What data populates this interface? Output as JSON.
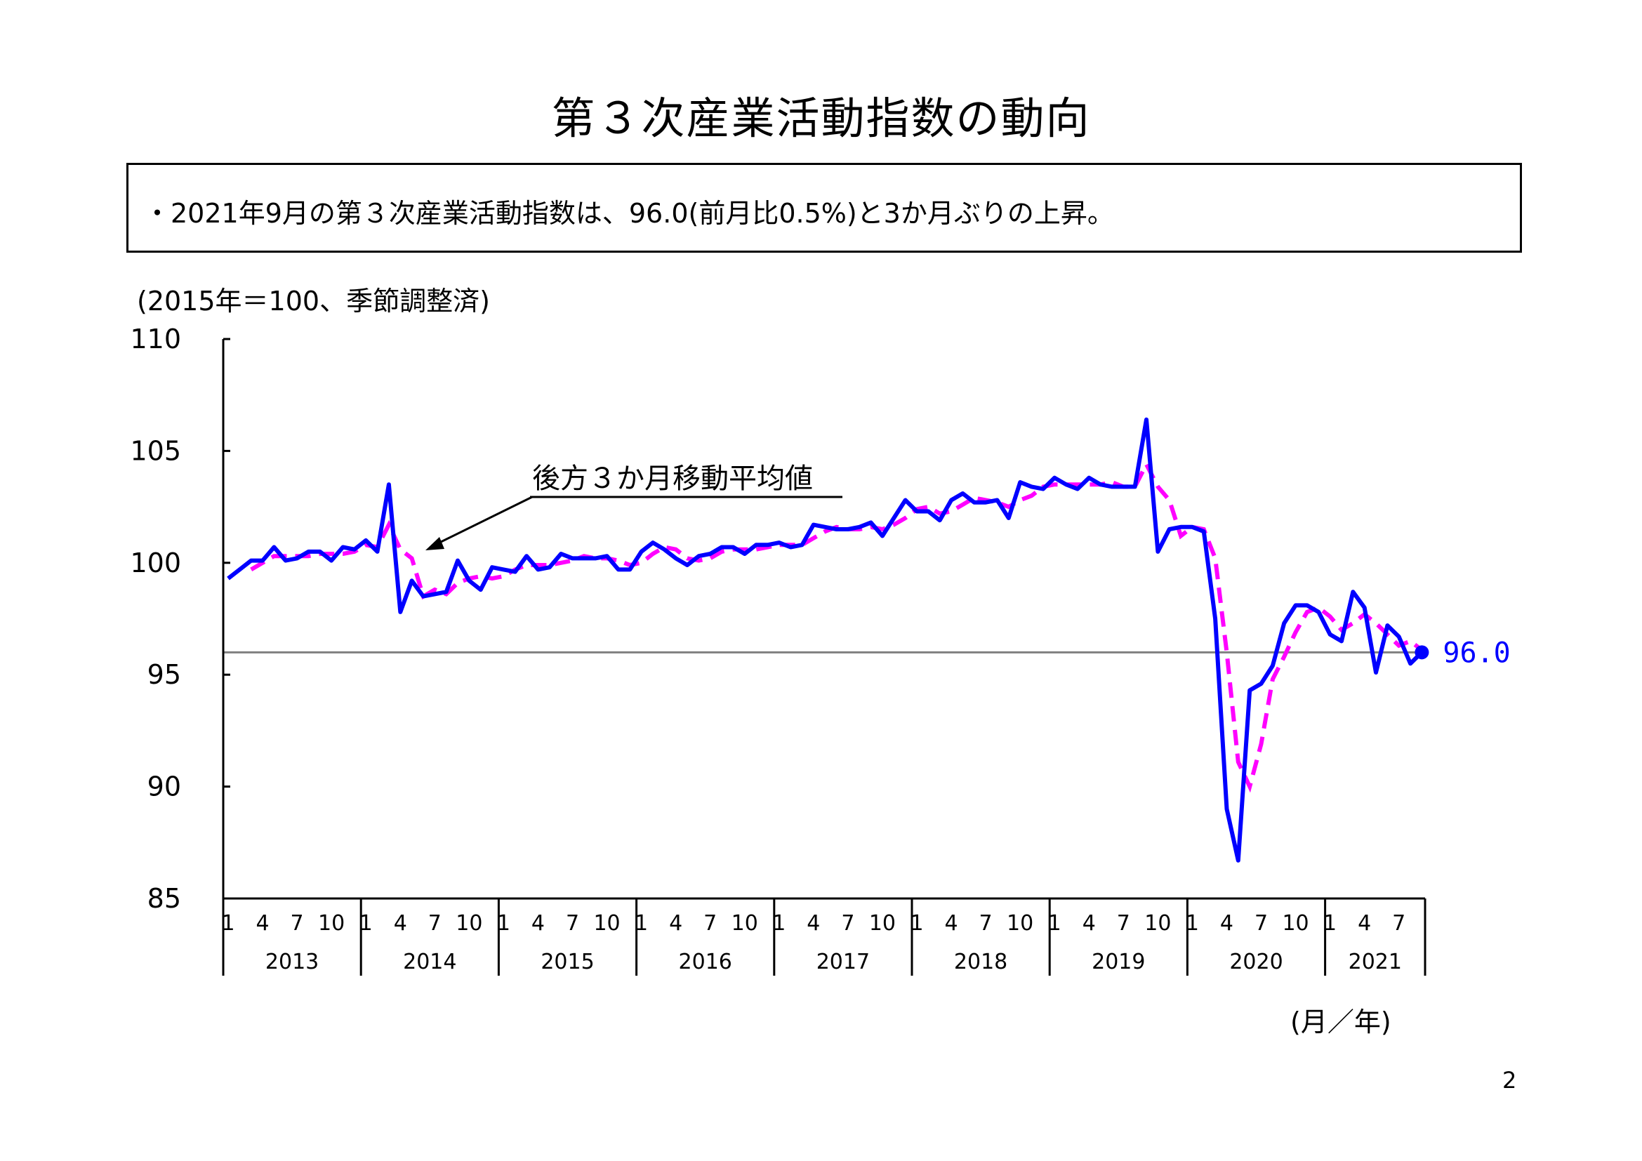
{
  "title": "第３次産業活動指数の動向",
  "summary": "・2021年9月の第３次産業活動指数は、96.0(前月比0.5%)と3か月ぶりの上昇。",
  "unit_note": "(2015年＝100、季節調整済)",
  "axis_unit": "(月／年)",
  "page_number": "2",
  "annotation": "後方３か月移動平均値",
  "last_value_label": "96.0",
  "colors": {
    "index": "#0000ff",
    "moving_average": "#ff00ff",
    "reference_line": "#808080"
  },
  "chart_data": {
    "type": "line",
    "ylim": [
      85,
      110
    ],
    "yticks": [
      85,
      90,
      95,
      100,
      105,
      110
    ],
    "reference_line": 96.0,
    "month_ticks": [
      "1",
      "4",
      "7",
      "10"
    ],
    "years": [
      "2013",
      "2014",
      "2015",
      "2016",
      "2017",
      "2018",
      "2019",
      "2020",
      "2021"
    ],
    "series": [
      {
        "key": "index",
        "values": [
          99.3,
          99.7,
          100.1,
          100.1,
          100.7,
          100.1,
          100.2,
          100.5,
          100.5,
          100.1,
          100.7,
          100.6,
          101.0,
          100.5,
          103.5,
          97.8,
          99.2,
          98.5,
          98.6,
          98.7,
          100.1,
          99.2,
          98.8,
          99.8,
          99.7,
          99.6,
          100.3,
          99.7,
          99.8,
          100.4,
          100.2,
          100.2,
          100.2,
          100.3,
          99.7,
          99.7,
          100.5,
          100.9,
          100.6,
          100.2,
          99.9,
          100.3,
          100.4,
          100.7,
          100.7,
          100.4,
          100.8,
          100.8,
          100.9,
          100.7,
          100.8,
          101.7,
          101.6,
          101.5,
          101.5,
          101.6,
          101.8,
          101.2,
          102.0,
          102.8,
          102.3,
          102.3,
          101.9,
          102.8,
          103.1,
          102.7,
          102.7,
          102.8,
          102.0,
          103.6,
          103.4,
          103.3,
          103.8,
          103.5,
          103.3,
          103.8,
          103.5,
          103.4,
          103.4,
          103.4,
          106.4,
          100.5,
          101.5,
          101.6,
          101.6,
          101.4,
          97.5,
          89.0,
          86.7,
          94.3,
          94.6,
          95.4,
          97.3,
          98.1,
          98.1,
          97.8,
          96.8,
          96.5,
          98.7,
          98.0,
          95.1,
          97.2,
          96.7,
          95.5,
          96.0
        ]
      },
      {
        "key": "moving_average",
        "values": [
          null,
          null,
          99.7,
          100.0,
          100.3,
          100.3,
          100.3,
          100.3,
          100.4,
          100.4,
          100.4,
          100.5,
          100.8,
          100.7,
          101.7,
          100.6,
          100.2,
          98.5,
          98.8,
          98.6,
          99.1,
          99.3,
          99.4,
          99.3,
          99.4,
          99.7,
          99.9,
          99.9,
          99.9,
          100.0,
          100.1,
          100.3,
          100.2,
          100.2,
          100.1,
          99.9,
          100.0,
          100.4,
          100.7,
          100.6,
          100.2,
          100.1,
          100.2,
          100.5,
          100.6,
          100.6,
          100.6,
          100.7,
          100.8,
          100.8,
          100.8,
          101.1,
          101.4,
          101.6,
          101.5,
          101.5,
          101.6,
          101.5,
          101.7,
          102.0,
          102.4,
          102.5,
          102.2,
          102.3,
          102.6,
          102.9,
          102.8,
          102.7,
          102.5,
          102.8,
          103.0,
          103.4,
          103.5,
          103.5,
          103.5,
          103.5,
          103.5,
          103.6,
          103.4,
          103.4,
          104.4,
          103.4,
          102.8,
          101.2,
          101.6,
          101.5,
          100.2,
          96.0,
          91.1,
          90.0,
          91.9,
          94.8,
          95.8,
          96.9,
          97.8,
          98.0,
          97.6,
          97.0,
          97.3,
          97.7,
          97.3,
          96.8,
          96.3,
          96.5,
          96.1
        ]
      }
    ]
  }
}
